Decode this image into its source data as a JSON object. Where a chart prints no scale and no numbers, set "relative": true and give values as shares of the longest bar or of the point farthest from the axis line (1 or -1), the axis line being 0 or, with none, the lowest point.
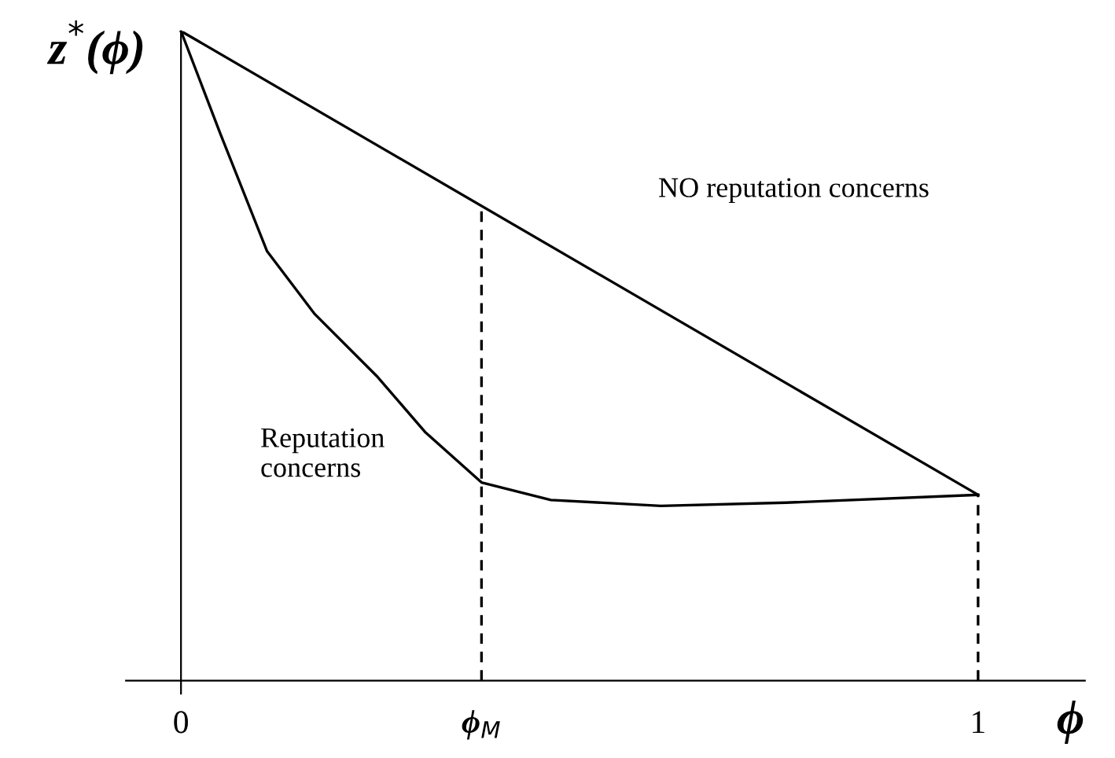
{
  "chart_data": {
    "type": "line",
    "relative": true,
    "xlabel": "ϕ",
    "ylabel": "z$^{*}$(ϕ)",
    "xlim": [
      -0.069,
      1.134
    ],
    "xticks": [
      0,
      {
        "value": 0.377,
        "label": "ϕ$_{M}$"
      },
      1
    ],
    "grid": false,
    "legend": false,
    "marker": "none",
    "series": [
      {
        "color": "#000000",
        "x": [
          0,
          1
        ],
        "values": [
          1,
          0.286
        ]
      },
      {
        "color": "#000000",
        "x": [
          0,
          0.049,
          0.108,
          0.168,
          0.247,
          0.306,
          0.377,
          0.464,
          0.602,
          0.759,
          1
        ],
        "values": [
          1,
          0.843,
          0.661,
          0.564,
          0.467,
          0.383,
          0.305,
          0.278,
          0.269,
          0.274,
          0.286
        ]
      },
      {
        "color": "#000000",
        "line_style": "dashed",
        "x": [
          0.377,
          0.377
        ],
        "values": [
          0,
          0.731
        ]
      },
      {
        "color": "#000000",
        "line_style": "dashed",
        "x": [
          1,
          1
        ],
        "values": [
          0,
          0.286
        ]
      }
    ],
    "annotations": [
      "NO reputation concerns",
      "Reputation\nconcerns"
    ]
  }
}
